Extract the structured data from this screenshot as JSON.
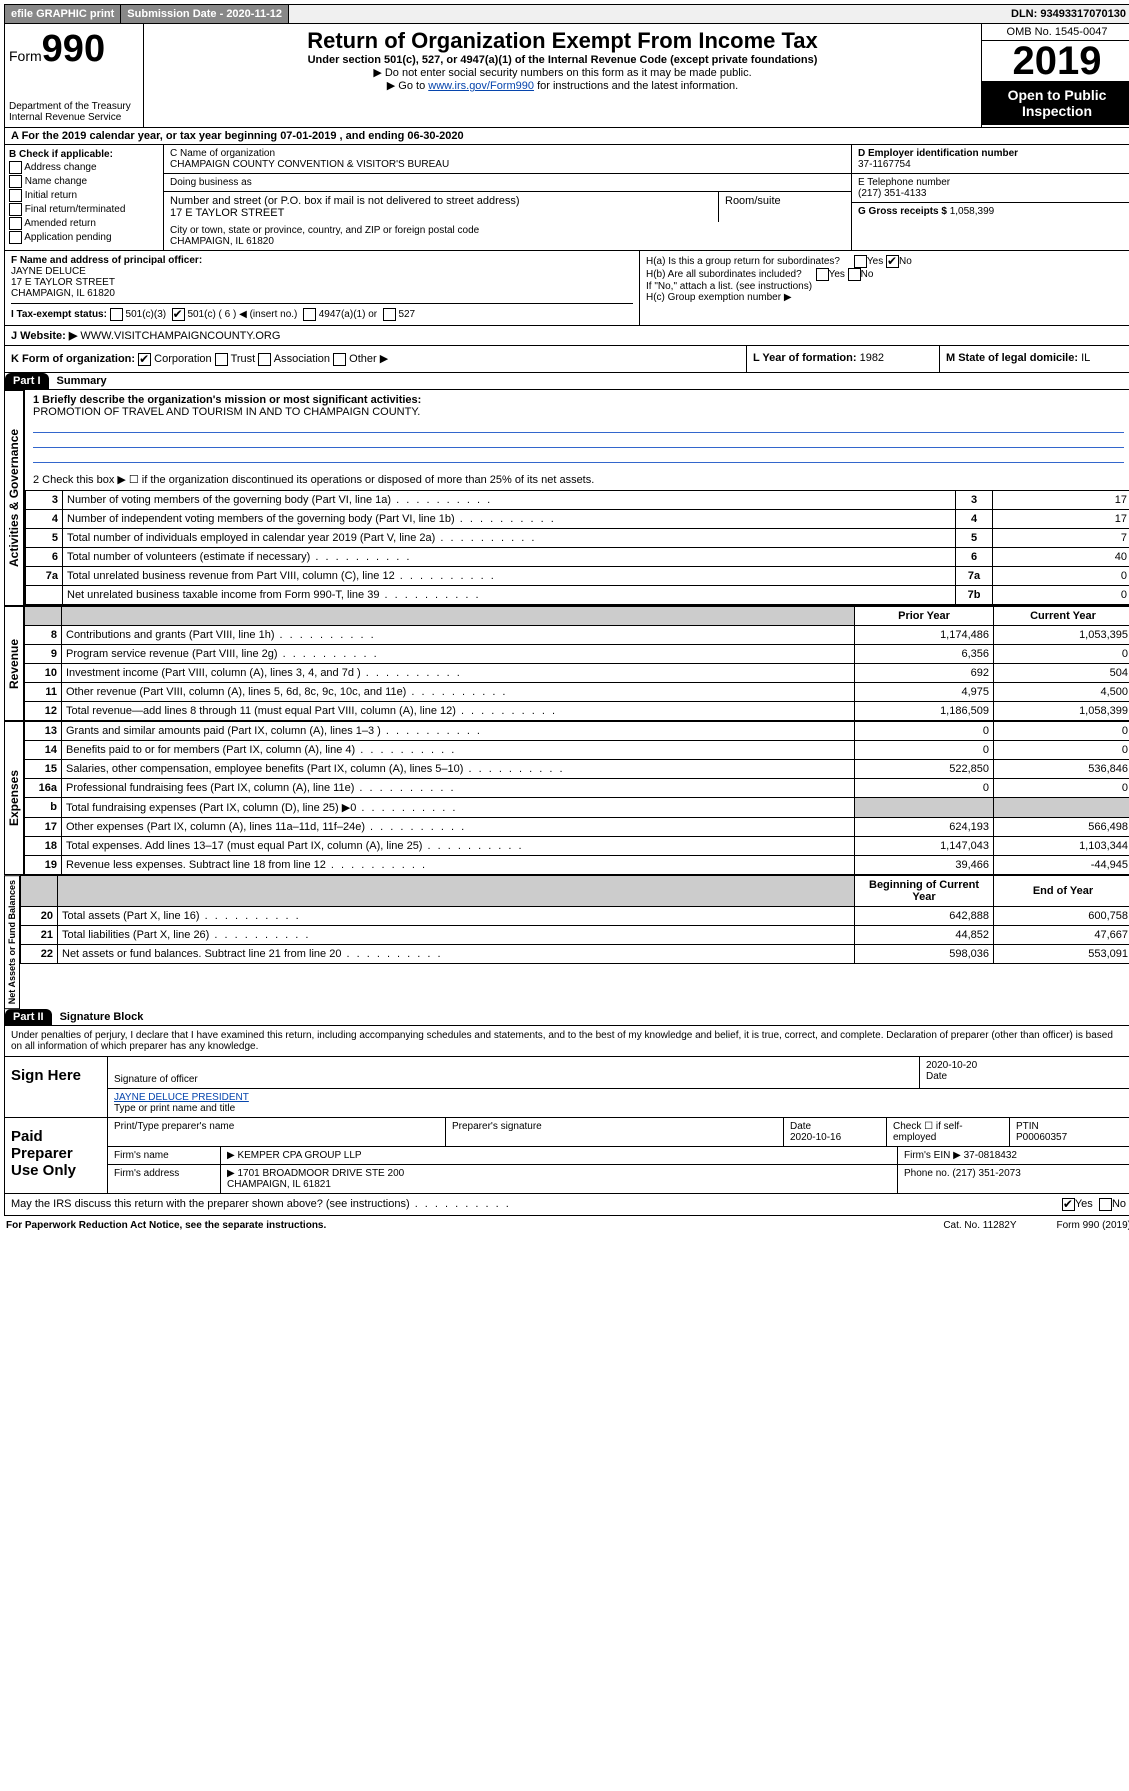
{
  "top": {
    "efile": "efile GRAPHIC print",
    "sub_label": "Submission Date - 2020-11-12",
    "dln": "DLN: 93493317070130"
  },
  "header": {
    "form_prefix": "Form",
    "form_number": "990",
    "dept": "Department of the Treasury\nInternal Revenue Service",
    "title": "Return of Organization Exempt From Income Tax",
    "subtitle": "Under section 501(c), 527, or 4947(a)(1) of the Internal Revenue Code (except private foundations)",
    "note1": "▶ Do not enter social security numbers on this form as it may be made public.",
    "note2_pre": "▶ Go to ",
    "note2_link": "www.irs.gov/Form990",
    "note2_post": " for instructions and the latest information.",
    "omb": "OMB No. 1545-0047",
    "year": "2019",
    "open": "Open to Public Inspection"
  },
  "section_a": "A For the 2019 calendar year, or tax year beginning 07-01-2019   , and ending 06-30-2020",
  "box_b": {
    "heading": "B Check if applicable:",
    "opts": [
      "Address change",
      "Name change",
      "Initial return",
      "Final return/terminated",
      "Amended return",
      "Application pending"
    ]
  },
  "box_c": {
    "name_label": "C Name of organization",
    "name": "CHAMPAIGN COUNTY CONVENTION & VISITOR'S BUREAU",
    "dba_label": "Doing business as",
    "addr_label": "Number and street (or P.O. box if mail is not delivered to street address)",
    "addr": "17 E TAYLOR STREET",
    "room_label": "Room/suite",
    "city_label": "City or town, state or province, country, and ZIP or foreign postal code",
    "city": "CHAMPAIGN, IL  61820"
  },
  "box_d": {
    "label": "D Employer identification number",
    "val": "37-1167754"
  },
  "box_e": {
    "label": "E Telephone number",
    "val": "(217) 351-4133"
  },
  "box_g": {
    "label": "G Gross receipts $",
    "val": "1,058,399"
  },
  "box_f": {
    "label": "F  Name and address of principal officer:",
    "name": "JAYNE DELUCE",
    "addr1": "17 E TAYLOR STREET",
    "addr2": "CHAMPAIGN, IL  61820"
  },
  "box_h": {
    "ha": "H(a)  Is this a group return for subordinates?",
    "hb": "H(b)  Are all subordinates included?",
    "hb_note": "If \"No,\" attach a list. (see instructions)",
    "hc": "H(c)  Group exemption number ▶"
  },
  "box_i": {
    "label": "I  Tax-exempt status:",
    "c3": "501(c)(3)",
    "c_other": "501(c) ( 6 ) ◀ (insert no.)",
    "a1": "4947(a)(1) or",
    "s527": "527"
  },
  "box_j": {
    "label": "J  Website: ▶",
    "val": "WWW.VISITCHAMPAIGNCOUNTY.ORG"
  },
  "box_k": {
    "label": "K Form of organization:",
    "corp": "Corporation",
    "trust": "Trust",
    "assoc": "Association",
    "other": "Other ▶"
  },
  "box_l": {
    "label": "L Year of formation:",
    "val": "1982"
  },
  "box_m": {
    "label": "M State of legal domicile:",
    "val": "IL"
  },
  "part1": {
    "tag": "Part I",
    "title": "Summary"
  },
  "summary": {
    "l1": "1  Briefly describe the organization's mission or most significant activities:",
    "mission": "PROMOTION OF TRAVEL AND TOURISM IN AND TO CHAMPAIGN COUNTY.",
    "l2": "2   Check this box ▶ ☐  if the organization discontinued its operations or disposed of more than 25% of its net assets.",
    "rows_top": [
      {
        "n": "3",
        "t": "Number of voting members of the governing body (Part VI, line 1a)",
        "box": "3",
        "v": "17"
      },
      {
        "n": "4",
        "t": "Number of independent voting members of the governing body (Part VI, line 1b)",
        "box": "4",
        "v": "17"
      },
      {
        "n": "5",
        "t": "Total number of individuals employed in calendar year 2019 (Part V, line 2a)",
        "box": "5",
        "v": "7"
      },
      {
        "n": "6",
        "t": "Total number of volunteers (estimate if necessary)",
        "box": "6",
        "v": "40"
      },
      {
        "n": "7a",
        "t": "Total unrelated business revenue from Part VIII, column (C), line 12",
        "box": "7a",
        "v": "0"
      },
      {
        "n": "",
        "t": "Net unrelated business taxable income from Form 990-T, line 39",
        "box": "7b",
        "v": "0"
      }
    ],
    "header_prior": "Prior Year",
    "header_current": "Current Year",
    "rows_rev": [
      {
        "n": "8",
        "t": "Contributions and grants (Part VIII, line 1h)",
        "p": "1,174,486",
        "c": "1,053,395"
      },
      {
        "n": "9",
        "t": "Program service revenue (Part VIII, line 2g)",
        "p": "6,356",
        "c": "0"
      },
      {
        "n": "10",
        "t": "Investment income (Part VIII, column (A), lines 3, 4, and 7d )",
        "p": "692",
        "c": "504"
      },
      {
        "n": "11",
        "t": "Other revenue (Part VIII, column (A), lines 5, 6d, 8c, 9c, 10c, and 11e)",
        "p": "4,975",
        "c": "4,500"
      },
      {
        "n": "12",
        "t": "Total revenue—add lines 8 through 11 (must equal Part VIII, column (A), line 12)",
        "p": "1,186,509",
        "c": "1,058,399"
      }
    ],
    "rows_exp": [
      {
        "n": "13",
        "t": "Grants and similar amounts paid (Part IX, column (A), lines 1–3 )",
        "p": "0",
        "c": "0"
      },
      {
        "n": "14",
        "t": "Benefits paid to or for members (Part IX, column (A), line 4)",
        "p": "0",
        "c": "0"
      },
      {
        "n": "15",
        "t": "Salaries, other compensation, employee benefits (Part IX, column (A), lines 5–10)",
        "p": "522,850",
        "c": "536,846"
      },
      {
        "n": "16a",
        "t": "Professional fundraising fees (Part IX, column (A), line 11e)",
        "p": "0",
        "c": "0"
      },
      {
        "n": "b",
        "t": "Total fundraising expenses (Part IX, column (D), line 25) ▶0",
        "p": "shaded",
        "c": "shaded"
      },
      {
        "n": "17",
        "t": "Other expenses (Part IX, column (A), lines 11a–11d, 11f–24e)",
        "p": "624,193",
        "c": "566,498"
      },
      {
        "n": "18",
        "t": "Total expenses. Add lines 13–17 (must equal Part IX, column (A), line 25)",
        "p": "1,147,043",
        "c": "1,103,344"
      },
      {
        "n": "19",
        "t": "Revenue less expenses. Subtract line 18 from line 12",
        "p": "39,466",
        "c": "-44,945"
      }
    ],
    "header_begin": "Beginning of Current Year",
    "header_end": "End of Year",
    "rows_net": [
      {
        "n": "20",
        "t": "Total assets (Part X, line 16)",
        "p": "642,888",
        "c": "600,758"
      },
      {
        "n": "21",
        "t": "Total liabilities (Part X, line 26)",
        "p": "44,852",
        "c": "47,667"
      },
      {
        "n": "22",
        "t": "Net assets or fund balances. Subtract line 21 from line 20",
        "p": "598,036",
        "c": "553,091"
      }
    ],
    "vlabels": {
      "gov": "Activities & Governance",
      "rev": "Revenue",
      "exp": "Expenses",
      "net": "Net Assets or Fund Balances"
    }
  },
  "part2": {
    "tag": "Part II",
    "title": "Signature Block"
  },
  "perjury": "Under penalties of perjury, I declare that I have examined this return, including accompanying schedules and statements, and to the best of my knowledge and belief, it is true, correct, and complete. Declaration of preparer (other than officer) is based on all information of which preparer has any knowledge.",
  "sign": {
    "here": "Sign Here",
    "sig_label": "Signature of officer",
    "date": "2020-10-20",
    "date_label": "Date",
    "name": "JAYNE DELUCE  PRESIDENT",
    "name_label": "Type or print name and title"
  },
  "paid": {
    "label": "Paid Preparer Use Only",
    "h1": "Print/Type preparer's name",
    "h2": "Preparer's signature",
    "h3": "Date",
    "date": "2020-10-16",
    "h4": "Check ☐ if self-employed",
    "h5": "PTIN",
    "ptin": "P00060357",
    "firm_name_l": "Firm's name",
    "firm_name": "▶ KEMPER CPA GROUP LLP",
    "firm_ein_l": "Firm's EIN ▶",
    "firm_ein": "37-0818432",
    "firm_addr_l": "Firm's address",
    "firm_addr": "▶ 1701 BROADMOOR DRIVE STE 200",
    "firm_city": "CHAMPAIGN, IL  61821",
    "phone_l": "Phone no.",
    "phone": "(217) 351-2073"
  },
  "footer": {
    "q": "May the IRS discuss this return with the preparer shown above? (see instructions)",
    "yes": "Yes",
    "no": "No",
    "notice": "For Paperwork Reduction Act Notice, see the separate instructions.",
    "cat": "Cat. No. 11282Y",
    "form": "Form 990 (2019)"
  }
}
